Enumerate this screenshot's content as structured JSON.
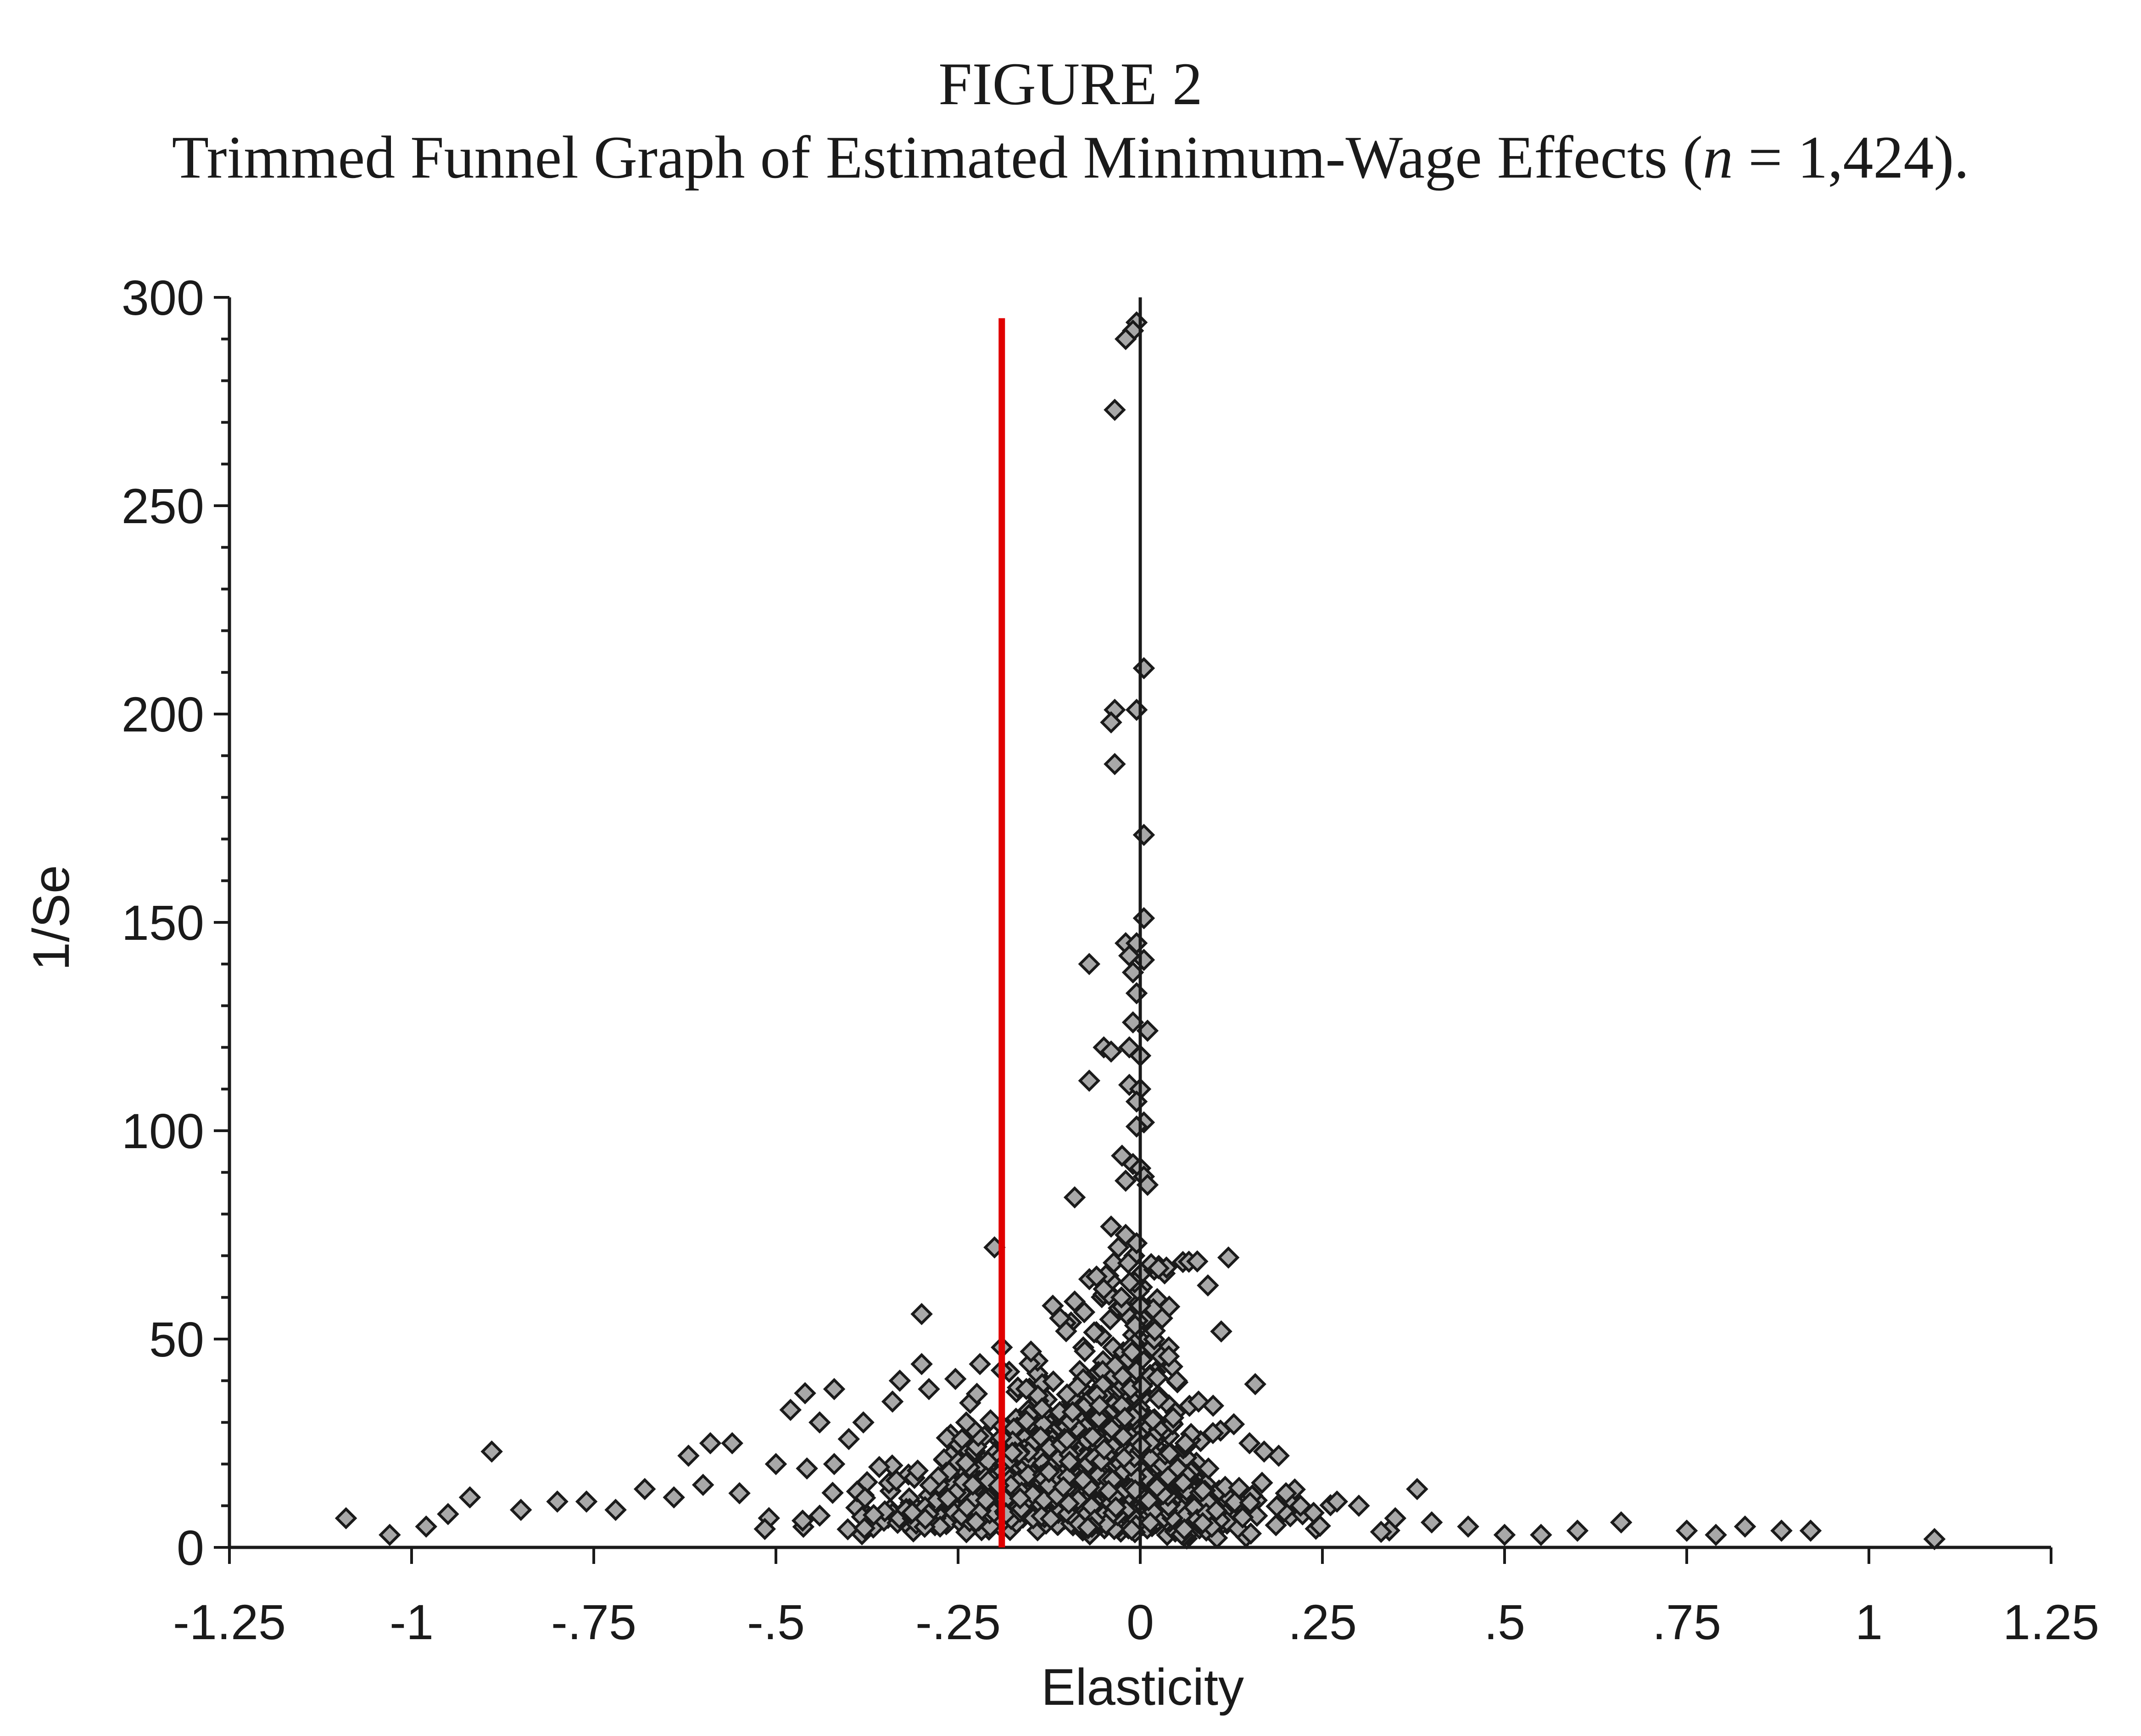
{
  "figure": {
    "label": "FIGURE 2",
    "caption_before": "Trimmed Funnel Graph of Estimated Minimum-Wage Effects (",
    "caption_var": "n",
    "caption_after": " = 1,424)."
  },
  "chart_data": {
    "type": "scatter",
    "title": "FIGURE 2",
    "subtitle": "Trimmed Funnel Graph of Estimated Minimum-Wage Effects (n = 1,424).",
    "xlabel": "Elasticity",
    "ylabel": "1/Se",
    "xlim": [
      -1.25,
      1.25
    ],
    "ylim": [
      0,
      300
    ],
    "x_ticks": [
      -1.25,
      -1,
      -0.75,
      -0.5,
      -0.25,
      0,
      0.25,
      0.5,
      0.75,
      1,
      1.25
    ],
    "x_tick_labels": [
      "-1.25",
      "-1",
      "-.75",
      "-.5",
      "-.25",
      "0",
      ".25",
      ".5",
      ".75",
      "1",
      "1.25"
    ],
    "y_ticks": [
      0,
      50,
      100,
      150,
      200,
      250,
      300
    ],
    "y_tick_labels": [
      "0",
      "50",
      "100",
      "150",
      "200",
      "250",
      "300"
    ],
    "grid": false,
    "legend": "none",
    "reference_lines": [
      {
        "orientation": "vertical",
        "x": 0,
        "y_range": [
          0,
          300
        ],
        "color": "#1a1a1a"
      },
      {
        "orientation": "vertical",
        "x": -0.19,
        "y_range": [
          0,
          295
        ],
        "color": "#e00000"
      }
    ],
    "marker": {
      "shape": "diamond",
      "fill": "#a8a8a8",
      "stroke": "#1a1a1a"
    },
    "n_points_reported": 1424,
    "points": [
      [
        -0.005,
        294
      ],
      [
        -0.01,
        292
      ],
      [
        -0.02,
        290
      ],
      [
        -0.035,
        273
      ],
      [
        0.005,
        211
      ],
      [
        -0.005,
        201
      ],
      [
        -0.035,
        201
      ],
      [
        -0.04,
        198
      ],
      [
        -0.035,
        188
      ],
      [
        0.005,
        171
      ],
      [
        0.005,
        151
      ],
      [
        -0.02,
        145
      ],
      [
        -0.005,
        145
      ],
      [
        0.005,
        141
      ],
      [
        -0.015,
        142
      ],
      [
        -0.07,
        140
      ],
      [
        -0.01,
        138
      ],
      [
        -0.005,
        133
      ],
      [
        -0.01,
        126
      ],
      [
        0.01,
        124
      ],
      [
        -0.015,
        120
      ],
      [
        -0.05,
        120
      ],
      [
        0.0,
        118
      ],
      [
        -0.04,
        119
      ],
      [
        -0.07,
        112
      ],
      [
        -0.015,
        111
      ],
      [
        0.0,
        110
      ],
      [
        -0.005,
        107
      ],
      [
        0.005,
        102
      ],
      [
        -0.005,
        101
      ],
      [
        -0.025,
        94
      ],
      [
        -0.01,
        92
      ],
      [
        0.0,
        91
      ],
      [
        0.005,
        89
      ],
      [
        -0.02,
        88
      ],
      [
        0.01,
        87
      ],
      [
        -0.09,
        84
      ],
      [
        -0.04,
        77
      ],
      [
        -0.02,
        75
      ],
      [
        -0.03,
        72
      ],
      [
        -0.2,
        72
      ],
      [
        -0.005,
        73
      ],
      [
        0.015,
        68
      ],
      [
        0.025,
        67
      ],
      [
        -0.06,
        65
      ],
      [
        -0.05,
        62
      ],
      [
        -0.09,
        59
      ],
      [
        -0.12,
        58
      ],
      [
        -0.11,
        55
      ],
      [
        -0.3,
        56
      ],
      [
        0.0,
        58
      ],
      [
        0.03,
        55
      ],
      [
        0.02,
        52
      ],
      [
        -0.19,
        48
      ],
      [
        -0.22,
        44
      ],
      [
        -0.15,
        47
      ],
      [
        -0.3,
        44
      ],
      [
        -0.33,
        40
      ],
      [
        -0.29,
        38
      ],
      [
        -0.42,
        38
      ],
      [
        -0.46,
        37
      ],
      [
        -0.48,
        33
      ],
      [
        -0.44,
        30
      ],
      [
        -0.38,
        30
      ],
      [
        -0.34,
        35
      ],
      [
        -0.4,
        26
      ],
      [
        -0.62,
        22
      ],
      [
        -0.59,
        25
      ],
      [
        -0.56,
        25
      ],
      [
        -0.89,
        23
      ],
      [
        -0.42,
        20
      ],
      [
        -0.5,
        20
      ],
      [
        0.17,
        23
      ],
      [
        0.19,
        22
      ],
      [
        0.15,
        25
      ],
      [
        0.1,
        34
      ],
      [
        0.08,
        35
      ],
      [
        0.05,
        40
      ],
      [
        0.38,
        14
      ],
      [
        -1.09,
        7
      ],
      [
        1.09,
        2
      ],
      [
        0.92,
        4
      ],
      [
        0.88,
        4
      ],
      [
        0.83,
        5
      ],
      [
        0.79,
        3
      ],
      [
        0.75,
        4
      ],
      [
        0.66,
        6
      ],
      [
        0.6,
        4
      ],
      [
        0.55,
        3
      ],
      [
        0.5,
        3
      ],
      [
        0.45,
        5
      ],
      [
        0.4,
        6
      ],
      [
        0.35,
        7
      ],
      [
        0.3,
        10
      ],
      [
        0.27,
        11
      ],
      [
        0.22,
        10
      ],
      [
        0.2,
        13
      ],
      [
        -1.03,
        3
      ],
      [
        -0.98,
        5
      ],
      [
        -0.95,
        8
      ],
      [
        -0.92,
        12
      ],
      [
        -0.85,
        9
      ],
      [
        -0.8,
        11
      ],
      [
        -0.76,
        11
      ],
      [
        -0.72,
        9
      ],
      [
        -0.68,
        14
      ],
      [
        -0.64,
        12
      ],
      [
        -0.6,
        15
      ],
      [
        -0.55,
        13
      ]
    ]
  }
}
